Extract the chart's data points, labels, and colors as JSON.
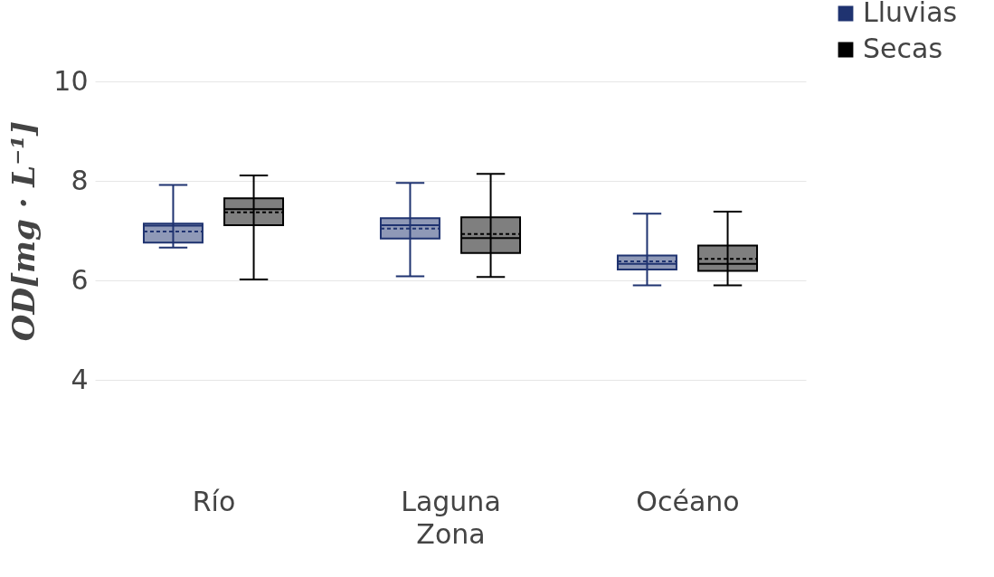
{
  "chart_data": {
    "type": "box",
    "xlabel": "Zona",
    "ylabel": "OD[mg · L⁻¹]",
    "categories": [
      "Río",
      "Laguna",
      "Océano"
    ],
    "series": [
      {
        "name": "Lluvias",
        "color": "#1f3370",
        "boxes": [
          {
            "low": 6.66,
            "q1": 6.76,
            "median": 7.1,
            "q3": 7.14,
            "high": 7.92,
            "mean": 6.98
          },
          {
            "low": 6.08,
            "q1": 6.84,
            "median": 7.11,
            "q3": 7.25,
            "high": 7.96,
            "mean": 7.04
          },
          {
            "low": 5.9,
            "q1": 6.22,
            "median": 6.33,
            "q3": 6.5,
            "high": 7.34,
            "mean": 6.38
          }
        ]
      },
      {
        "name": "Secas",
        "color": "#000000",
        "boxes": [
          {
            "low": 6.02,
            "q1": 7.11,
            "median": 7.43,
            "q3": 7.65,
            "high": 8.11,
            "mean": 7.37
          },
          {
            "low": 6.07,
            "q1": 6.55,
            "median": 6.85,
            "q3": 7.27,
            "high": 8.14,
            "mean": 6.93
          },
          {
            "low": 5.9,
            "q1": 6.19,
            "median": 6.33,
            "q3": 6.7,
            "high": 7.38,
            "mean": 6.43
          }
        ]
      }
    ],
    "ylim": [
      4,
      10
    ],
    "yticks": [
      4,
      6,
      8,
      10
    ],
    "grid": "y",
    "legend": "top right"
  }
}
